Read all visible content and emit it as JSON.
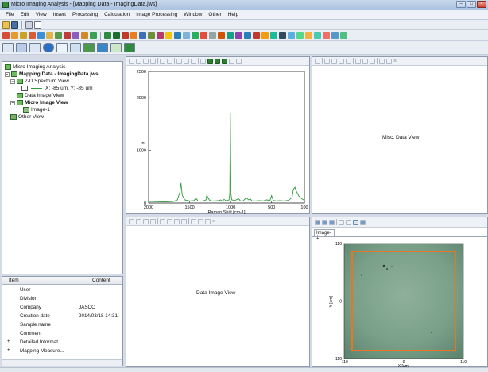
{
  "window": {
    "title": "Micro Imaging Analysis - [Mapping Data - ImagingData.jws]"
  },
  "menu": [
    "File",
    "Edit",
    "View",
    "Insert",
    "Processing",
    "Calculation",
    "Image Processing",
    "Window",
    "Other",
    "Help"
  ],
  "tree": {
    "root": "Micro Imaging Analysis",
    "mapping": "Mapping Data - ImagingData.jws",
    "spectrum_view": "2-D Spectrum View",
    "spectrum_legend": "X: -85 um, Y: -85 um",
    "data_image_view": "Data Image View",
    "micro_image_view": "Micro Image View",
    "image_1": "Image-1",
    "other_view": "Other View"
  },
  "properties": {
    "col_item": "Item",
    "col_content": "Content",
    "rows": [
      {
        "key": "User",
        "value": "",
        "expander": ""
      },
      {
        "key": "Division",
        "value": "",
        "expander": ""
      },
      {
        "key": "Company",
        "value": "JASCO",
        "expander": ""
      },
      {
        "key": "Creation date",
        "value": "2014/03/18 14:31",
        "expander": ""
      },
      {
        "key": "Sample name",
        "value": "",
        "expander": ""
      },
      {
        "key": "Comment",
        "value": "",
        "expander": ""
      },
      {
        "key": "Detailed Informat...",
        "value": "",
        "expander": "+"
      },
      {
        "key": "Mapping Measure...",
        "value": "",
        "expander": "+"
      }
    ]
  },
  "panes": {
    "misc_label": "Misc. Data View",
    "data_image_label": "Data Image View",
    "image_tab": "Image-1"
  },
  "chart_data": [
    {
      "type": "line",
      "title": "",
      "xlabel": "Raman Shift [cm-1]",
      "ylabel": "Int.",
      "xlim": [
        2000,
        100
      ],
      "ylim": [
        0,
        2500
      ],
      "xticks": [
        "2000",
        "1500",
        "1000",
        "500",
        "100"
      ],
      "yticks": [
        "0",
        "1000",
        "2000",
        "2500"
      ],
      "series": [
        {
          "color": "#2e9b3c",
          "x": [
            2000,
            1900,
            1800,
            1700,
            1650,
            1620,
            1605,
            1590,
            1560,
            1500,
            1450,
            1420,
            1400,
            1350,
            1300,
            1290,
            1260,
            1240,
            1200,
            1150,
            1120,
            1100,
            1080,
            1050,
            1020,
            1010,
            1003,
            996,
            985,
            950,
            900,
            880,
            850,
            810,
            780,
            760,
            740,
            700,
            650,
            600,
            560,
            520,
            500,
            480,
            440,
            400,
            350,
            300,
            270,
            250,
            235,
            215,
            200,
            170,
            140,
            110,
            100
          ],
          "y": [
            30,
            25,
            22,
            30,
            60,
            200,
            380,
            150,
            60,
            40,
            45,
            90,
            40,
            35,
            60,
            150,
            60,
            40,
            40,
            45,
            60,
            35,
            70,
            40,
            60,
            180,
            1720,
            170,
            60,
            50,
            80,
            40,
            40,
            100,
            60,
            80,
            40,
            40,
            45,
            40,
            60,
            50,
            140,
            50,
            40,
            45,
            40,
            50,
            80,
            110,
            260,
            300,
            230,
            140,
            90,
            60,
            40
          ]
        }
      ]
    },
    {
      "type": "heatmap",
      "title": "",
      "xlabel": "X [um]",
      "ylabel": "Y [um]",
      "xlim": [
        -110,
        110
      ],
      "ylim": [
        -110,
        110
      ],
      "xticks": [
        "-110",
        "0",
        "110"
      ],
      "yticks": [
        "110",
        "0",
        "-110"
      ],
      "roi_color": "#e87722"
    }
  ]
}
